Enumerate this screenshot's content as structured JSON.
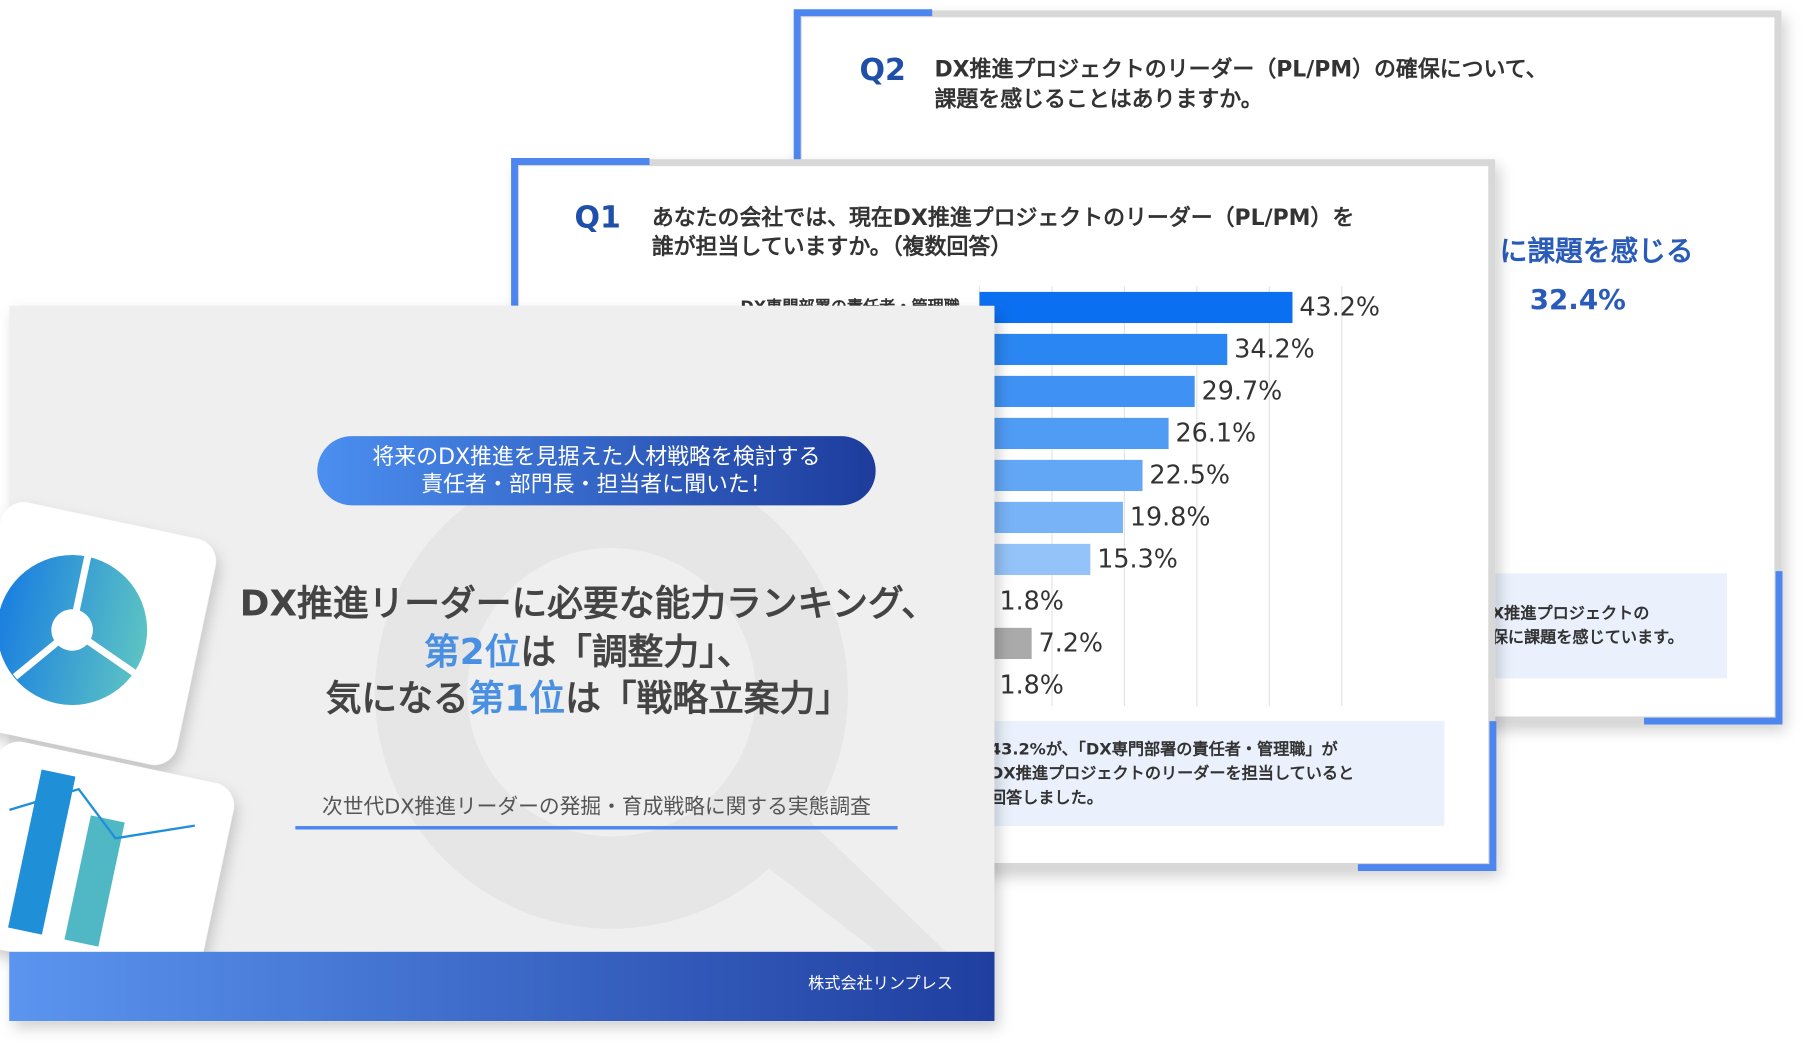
{
  "back_slide": {
    "label": "Q2",
    "question": [
      "DX推進プロジェクトのリーダー（PL/PM）の確保について、",
      "課題を感じることはありますか。"
    ],
    "highlight": "に課題を感じる",
    "highlight_value": "32.4%",
    "note": [
      "X推進プロジェクトの",
      "保に課題を感じています。"
    ]
  },
  "middle_slide": {
    "label": "Q1",
    "question": [
      "あなたの会社では、現在DX推進プロジェクトのリーダー（PL/PM）を",
      "誰が担当していますか。（複数回答）"
    ],
    "chart": {
      "type": "bar",
      "orientation": "horizontal",
      "categories": [
        "DX専門部署の責任者・管理職",
        null,
        null,
        null,
        null,
        null,
        null,
        null,
        null,
        null
      ],
      "values": [
        43.2,
        34.2,
        29.7,
        26.1,
        22.5,
        19.8,
        15.3,
        1.8,
        7.2,
        1.8
      ],
      "value_labels": [
        "43.2%",
        "34.2%",
        "29.7%",
        "26.1%",
        "22.5%",
        "19.8%",
        "15.3%",
        "1.8%",
        "7.2%",
        "1.8%"
      ],
      "colors": [
        "#0a6ff0",
        "#2a86f2",
        "#3f92f4",
        "#509cf5",
        "#62a6f6",
        "#78b3f7",
        "#93c3f8",
        "#a9cff9",
        "#aaaaaa",
        "#bbbbbb"
      ],
      "xlim": [
        0,
        50
      ],
      "xticks": [
        0,
        10,
        20,
        30,
        40,
        50
      ],
      "grid": true
    },
    "note": [
      "43.2%が、「DX専門部署の責任者・管理職」が",
      "DX推進プロジェクトのリーダーを担当していると",
      "回答しました。"
    ]
  },
  "front_slide": {
    "tag": [
      "将来のDX推進を見据えた人材戦略を検討する",
      "責任者・部門長・担当者に聞いた！"
    ],
    "title": {
      "line1": "DX推進リーダーに必要な能力ランキング、",
      "line2": [
        "第2位",
        "は「調整力」、"
      ],
      "line3": [
        "気になる",
        "第1位",
        "は「戦略立案力」"
      ]
    },
    "subtitle": "次世代DX推進リーダーの発掘・育成戦略に関する実態調査",
    "company": "株式会社リンプレス"
  }
}
